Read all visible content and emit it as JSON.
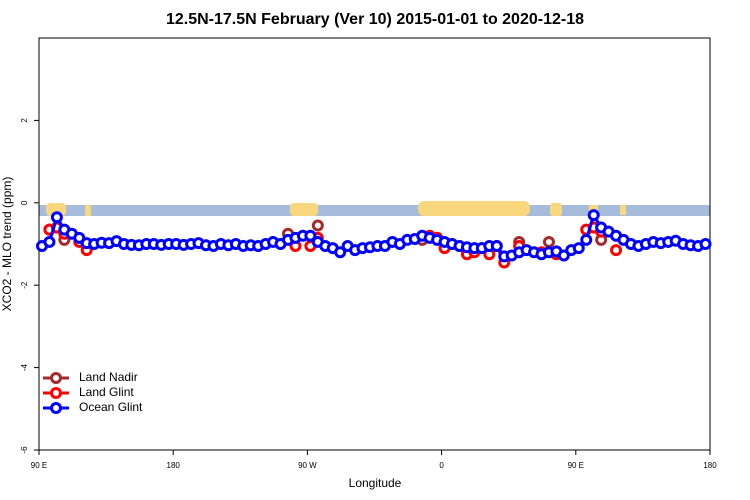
{
  "chart_data": {
    "type": "line",
    "title": "12.5N-17.5N February (Ver 10)   2015-01-01 to 2020-12-18",
    "x_label": "Longitude",
    "y_label": "XCO2 - MLO trend (ppm)",
    "xlim": [
      90,
      540
    ],
    "ylim": [
      -6,
      4
    ],
    "xticks": [
      {
        "value": 90,
        "label": "90 E"
      },
      180,
      {
        "value": 270,
        "label": "90 W"
      },
      {
        "value": 360,
        "label": "0"
      },
      {
        "value": 450,
        "label": "90 E"
      },
      {
        "value": 540,
        "label": "180"
      }
    ],
    "yticks": [
      -6,
      -4,
      -2,
      0,
      2
    ],
    "legend": "bottom-left",
    "x": [
      92,
      97,
      102,
      107,
      112,
      117,
      122,
      127,
      132,
      137,
      142,
      147,
      152,
      157,
      162,
      167,
      172,
      177,
      182,
      187,
      192,
      197,
      202,
      207,
      212,
      217,
      222,
      227,
      232,
      237,
      242,
      247,
      252,
      257,
      262,
      267,
      272,
      277,
      282,
      287,
      292,
      297,
      302,
      307,
      312,
      317,
      322,
      327,
      332,
      337,
      342,
      347,
      352,
      357,
      362,
      367,
      372,
      377,
      382,
      387,
      392,
      397,
      402,
      407,
      412,
      417,
      422,
      427,
      432,
      437,
      442,
      447,
      452,
      457,
      462,
      467,
      472,
      477,
      482,
      487,
      492,
      497,
      502,
      507,
      512,
      517,
      522,
      527,
      532,
      537
    ],
    "series": [
      {
        "name": "Land Nadir",
        "color": "#a52a2a",
        "values": [
          null,
          -0.65,
          -0.6,
          -0.9,
          null,
          null,
          null,
          null,
          null,
          null,
          null,
          null,
          null,
          null,
          null,
          null,
          null,
          null,
          null,
          null,
          null,
          null,
          null,
          null,
          null,
          null,
          null,
          null,
          null,
          null,
          null,
          null,
          null,
          -0.75,
          null,
          null,
          null,
          -0.55,
          null,
          null,
          null,
          null,
          null,
          null,
          null,
          null,
          null,
          null,
          null,
          null,
          null,
          -0.9,
          null,
          -0.85,
          null,
          null,
          null,
          null,
          null,
          null,
          null,
          null,
          null,
          null,
          -0.95,
          null,
          null,
          null,
          -0.95,
          null,
          null,
          null,
          null,
          null,
          null,
          -0.9,
          null,
          null,
          null,
          null,
          null,
          null,
          null,
          null,
          null,
          null,
          null,
          null,
          null,
          null
        ]
      },
      {
        "name": "Land Glint",
        "color": "#ff0000",
        "values": [
          null,
          -0.65,
          -0.6,
          -0.75,
          null,
          -0.95,
          -1.15,
          null,
          null,
          null,
          null,
          null,
          null,
          null,
          null,
          null,
          null,
          null,
          null,
          null,
          null,
          null,
          null,
          null,
          null,
          null,
          null,
          null,
          null,
          null,
          null,
          null,
          null,
          null,
          -1.05,
          null,
          -1.05,
          -0.85,
          null,
          null,
          null,
          null,
          null,
          null,
          null,
          null,
          null,
          null,
          null,
          null,
          null,
          null,
          -0.8,
          -0.85,
          -1.1,
          -1.0,
          -1.05,
          -1.25,
          -1.2,
          -1.1,
          -1.25,
          -1.05,
          -1.45,
          null,
          -1.05,
          null,
          null,
          -1.2,
          null,
          -1.25,
          null,
          null,
          null,
          -0.65,
          -0.6,
          -0.7,
          null,
          -1.15,
          null,
          null,
          null,
          null,
          null,
          null,
          null,
          null,
          null,
          null,
          null,
          null
        ]
      },
      {
        "name": "Ocean Glint",
        "color": "#0000ff",
        "values": [
          -1.05,
          -0.95,
          -0.35,
          -0.65,
          -0.75,
          -0.85,
          -0.98,
          -1.0,
          -0.97,
          -0.98,
          -0.93,
          -1.0,
          -1.02,
          -1.03,
          -1.0,
          -1.0,
          -1.02,
          -1.0,
          -1.0,
          -1.02,
          -1.0,
          -0.98,
          -1.03,
          -1.05,
          -1.0,
          -1.03,
          -1.0,
          -1.05,
          -1.03,
          -1.05,
          -1.0,
          -0.95,
          -1.0,
          -0.9,
          -0.85,
          -0.8,
          -0.8,
          -0.95,
          -1.05,
          -1.1,
          -1.2,
          -1.05,
          -1.15,
          -1.1,
          -1.08,
          -1.05,
          -1.05,
          -0.95,
          -1.0,
          -0.9,
          -0.88,
          -0.8,
          -0.85,
          -0.9,
          -0.95,
          -1.0,
          -1.05,
          -1.08,
          -1.1,
          -1.1,
          -1.05,
          -1.05,
          -1.3,
          -1.28,
          -1.2,
          -1.15,
          -1.2,
          -1.25,
          -1.2,
          -1.18,
          -1.28,
          -1.15,
          -1.1,
          -0.9,
          -0.3,
          -0.6,
          -0.7,
          -0.8,
          -0.9,
          -1.0,
          -1.05,
          -1.0,
          -0.95,
          -0.98,
          -0.95,
          -0.92,
          -1.0,
          -1.03,
          -1.05,
          -1.0
        ]
      }
    ]
  }
}
